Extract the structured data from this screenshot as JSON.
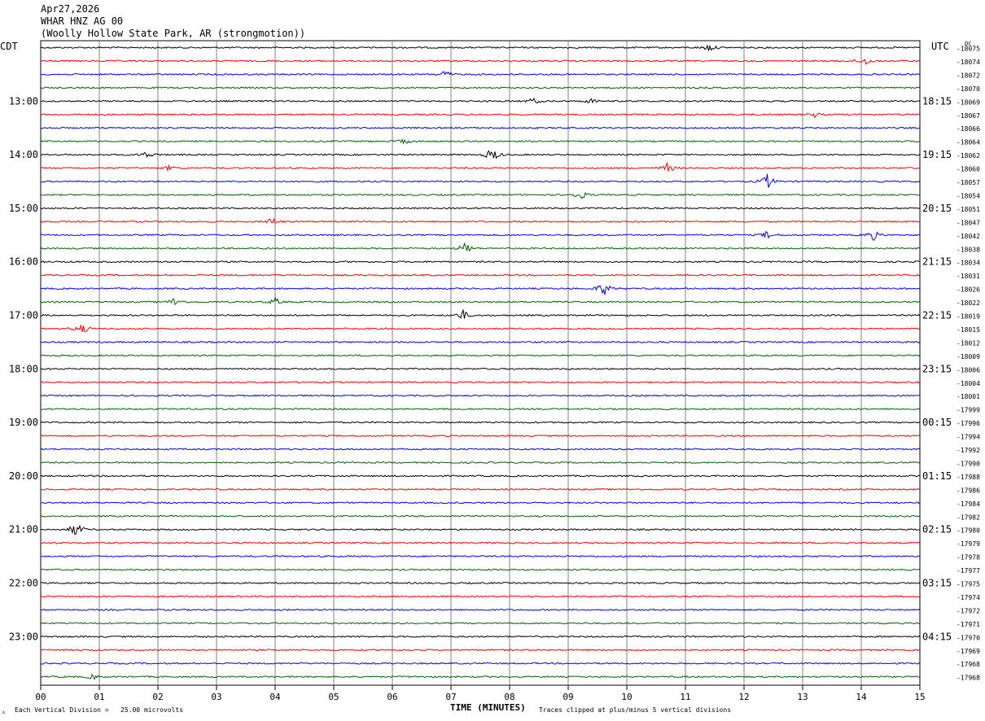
{
  "header": {
    "date": "Apr27,2026",
    "station": "WHAR HNZ AG 00",
    "location": "(Woolly Hollow State Park, AR (strongmotion))"
  },
  "footer": {
    "scale_note": "Each Vertical Division =   25.00 microvolts",
    "clip_note": "Traces clipped at plus/minus 5 vertical divisions",
    "mark": "▵"
  },
  "chart_data": {
    "type": "line",
    "title": "",
    "xlabel": "TIME (MINUTES)",
    "ylabel_left": "CDT",
    "ylabel_right": "UTC",
    "offset_header": "DC",
    "x_ticks": [
      "00",
      "01",
      "02",
      "03",
      "04",
      "05",
      "06",
      "07",
      "08",
      "09",
      "10",
      "11",
      "12",
      "13",
      "14",
      "15"
    ],
    "xlim": [
      0,
      15
    ],
    "trace_colors": [
      "#000000",
      "#ff0000",
      "#0000ff",
      "#006400"
    ],
    "left_hour_labels": [
      "13:00",
      "14:00",
      "15:00",
      "16:00",
      "17:00",
      "18:00",
      "19:00",
      "20:00",
      "21:00",
      "22:00",
      "23:00"
    ],
    "right_hour_labels": [
      "18:15",
      "19:15",
      "20:15",
      "21:15",
      "22:15",
      "23:15",
      "00:15",
      "01:15",
      "02:15",
      "03:15",
      "04:15"
    ],
    "dc_offsets": [
      "-18075",
      "-18074",
      "-18072",
      "-18070",
      "-18069",
      "-18067",
      "-18066",
      "-18064",
      "-18062",
      "-18060",
      "-18057",
      "-18054",
      "-18051",
      "-18047",
      "-18042",
      "-18038",
      "-18034",
      "-18031",
      "-18026",
      "-18022",
      "-18019",
      "-18015",
      "-18012",
      "-18009",
      "-18006",
      "-18004",
      "-18001",
      "-17999",
      "-17996",
      "-17994",
      "-17992",
      "-17990",
      "-17988",
      "-17986",
      "-17984",
      "-17982",
      "-17980",
      "-17979",
      "-17978",
      "-17977",
      "-17975",
      "-17974",
      "-17972",
      "-17971",
      "-17970",
      "-17969",
      "-17968",
      "-17968"
    ],
    "events": [
      {
        "trace": 0,
        "minute": 11.4,
        "amp": 1.5
      },
      {
        "trace": 1,
        "minute": 14.05,
        "amp": 2.0
      },
      {
        "trace": 2,
        "minute": 6.9,
        "amp": 1.5
      },
      {
        "trace": 4,
        "minute": 8.4,
        "amp": 1.2
      },
      {
        "trace": 4,
        "minute": 9.4,
        "amp": 1.0
      },
      {
        "trace": 5,
        "minute": 13.2,
        "amp": 1.0
      },
      {
        "trace": 7,
        "minute": 6.2,
        "amp": 1.0
      },
      {
        "trace": 8,
        "minute": 1.8,
        "amp": 1.5
      },
      {
        "trace": 8,
        "minute": 7.7,
        "amp": 3.0
      },
      {
        "trace": 9,
        "minute": 10.7,
        "amp": 2.0
      },
      {
        "trace": 9,
        "minute": 2.2,
        "amp": 1.0
      },
      {
        "trace": 10,
        "minute": 12.4,
        "amp": 3.0
      },
      {
        "trace": 11,
        "minute": 9.2,
        "amp": 2.0
      },
      {
        "trace": 13,
        "minute": 3.95,
        "amp": 1.5
      },
      {
        "trace": 14,
        "minute": 12.4,
        "amp": 1.5
      },
      {
        "trace": 14,
        "minute": 14.2,
        "amp": 2.0
      },
      {
        "trace": 15,
        "minute": 7.25,
        "amp": 2.5
      },
      {
        "trace": 18,
        "minute": 9.6,
        "amp": 3.0
      },
      {
        "trace": 19,
        "minute": 2.3,
        "amp": 2.0
      },
      {
        "trace": 19,
        "minute": 4.0,
        "amp": 1.5
      },
      {
        "trace": 20,
        "minute": 7.2,
        "amp": 2.0
      },
      {
        "trace": 21,
        "minute": 0.7,
        "amp": 2.0
      },
      {
        "trace": 36,
        "minute": 0.6,
        "amp": 3.0
      },
      {
        "trace": 47,
        "minute": 0.9,
        "amp": 1.0
      }
    ]
  }
}
